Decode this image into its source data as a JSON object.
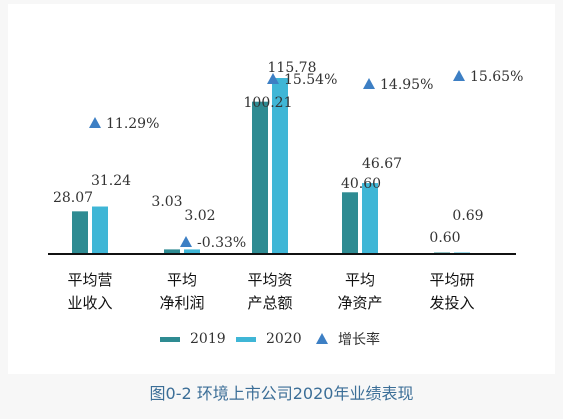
{
  "chart_data": {
    "type": "bar",
    "categories": [
      [
        "平均营",
        "业收入"
      ],
      [
        "平均",
        "净利润"
      ],
      [
        "平均资",
        "产总额"
      ],
      [
        "平均",
        "净资产"
      ],
      [
        "平均研",
        "发投入"
      ]
    ],
    "series": [
      {
        "name": "2019",
        "values": [
          28.07,
          3.03,
          100.21,
          40.6,
          0.6
        ],
        "labels": [
          "28.07",
          "3.03",
          "100.21",
          "40.60",
          "0.60"
        ]
      },
      {
        "name": "2020",
        "values": [
          31.24,
          3.02,
          115.78,
          46.67,
          0.69
        ],
        "labels": [
          "31.24",
          "3.02",
          "115.78",
          "46.67",
          "0.69"
        ]
      },
      {
        "name": "增长率",
        "values": [
          11.29,
          -0.33,
          15.54,
          14.95,
          15.65
        ],
        "labels": [
          "11.29%",
          "-0.33%",
          "15.54%",
          "14.95%",
          "15.65%"
        ]
      }
    ],
    "ylim": [
      0,
      125
    ],
    "grid": false,
    "legend_position": "bottom"
  },
  "colors": {
    "s2019": "#2e8b92",
    "s2020": "#3fb6d6",
    "marker": "#3d7fc4",
    "axis": "#111111",
    "text": "#333333"
  },
  "caption": "图0-2 环境上市公司2020年业绩表现"
}
